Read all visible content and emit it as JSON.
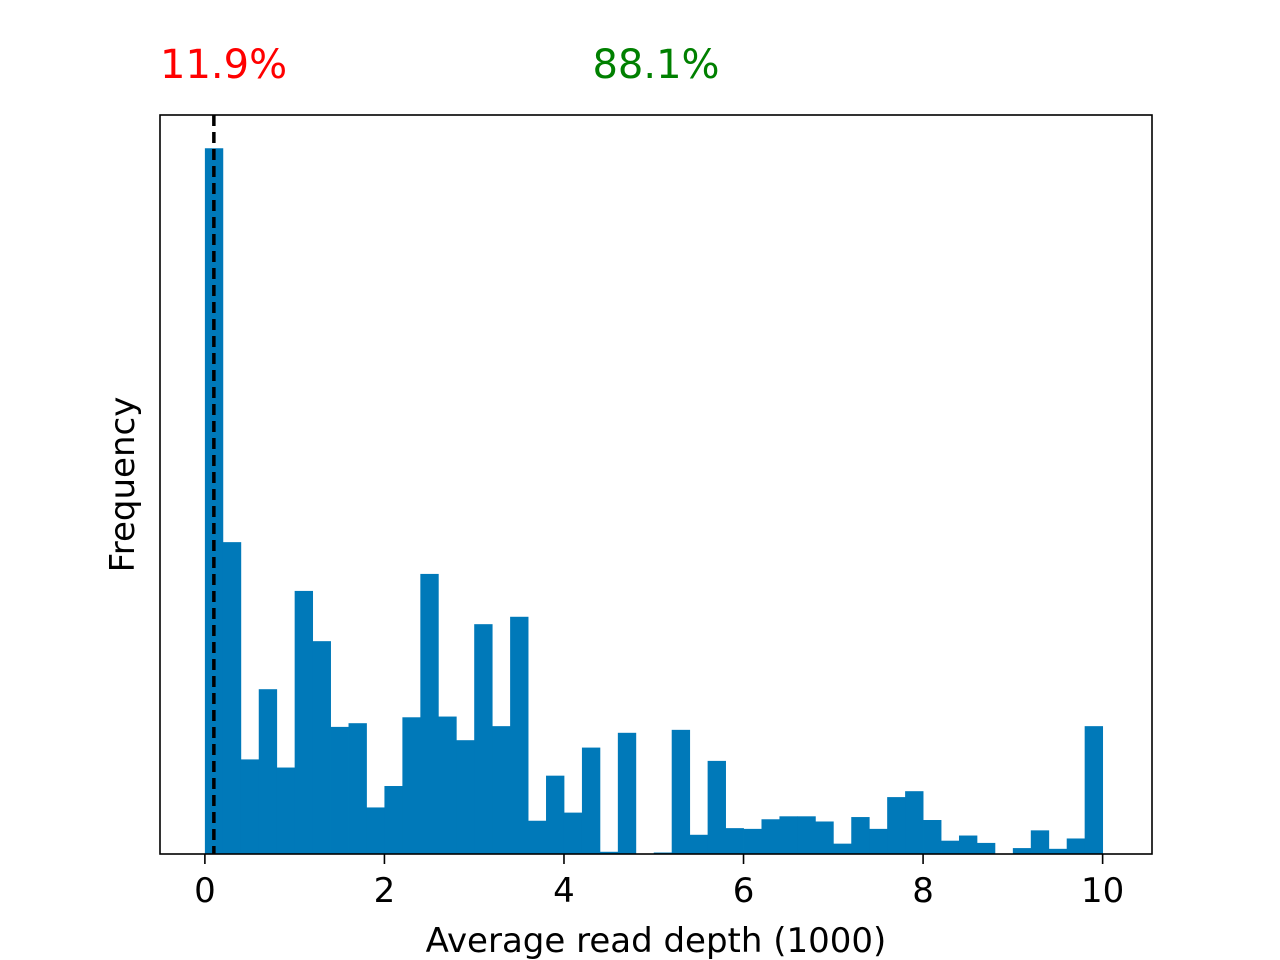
{
  "chart_data": {
    "type": "bar",
    "xlabel": "Average read depth (1000)",
    "ylabel": "Frequency",
    "xlim": [
      -0.5,
      10.55
    ],
    "ylim": [
      0,
      100
    ],
    "x_ticks": [
      0,
      2,
      4,
      6,
      8,
      10
    ],
    "y_ticks_shown": false,
    "grid": false,
    "bin_width": 0.2,
    "bin_start": 0.0,
    "values": [
      95.5,
      42.2,
      12.8,
      22.3,
      11.7,
      35.6,
      28.8,
      17.2,
      17.7,
      6.3,
      9.2,
      18.5,
      37.9,
      18.6,
      15.4,
      31.1,
      17.3,
      32.1,
      4.5,
      10.6,
      5.6,
      14.4,
      0.3,
      16.4,
      0,
      0.2,
      16.8,
      2.6,
      12.6,
      3.5,
      3.4,
      4.7,
      5.1,
      5.1,
      4.4,
      1.4,
      5.0,
      3.4,
      7.7,
      8.5,
      4.6,
      1.8,
      2.5,
      1.5,
      0,
      0.8,
      3.2,
      0.7,
      2.1,
      17.3
    ],
    "bar_color": "#0079b9",
    "threshold": {
      "x": 0.1,
      "style": "dashed",
      "color": "#000000"
    },
    "annotations": [
      {
        "text": "11.9%",
        "color": "#ff0000"
      },
      {
        "text": "88.1%",
        "color": "#008000"
      }
    ]
  }
}
